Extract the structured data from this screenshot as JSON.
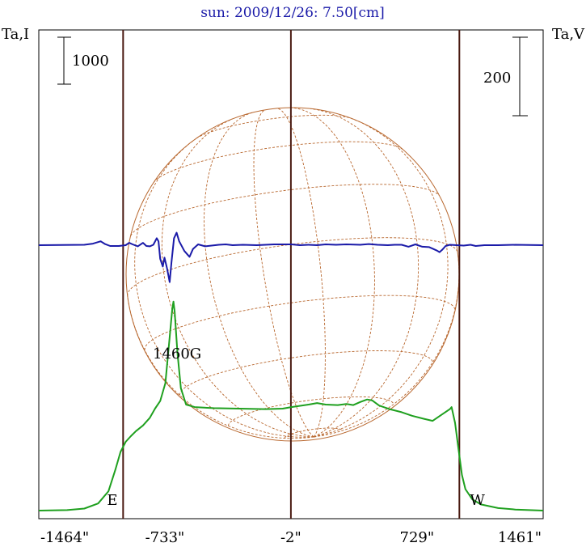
{
  "chart_data": {
    "type": "line",
    "title": "sun: 2009/12/26: 7.50[cm]",
    "left_axis_label": "Ta,I",
    "right_axis_label": "Ta,V",
    "x_tick_labels": [
      "-1464\"",
      "-733\"",
      "-2\"",
      "729\"",
      "1461\""
    ],
    "x_ticks": [
      -1464,
      -733,
      -2,
      729,
      1461
    ],
    "xlim": [
      -1464,
      1461
    ],
    "limb_markers": [
      {
        "label": "E",
        "x": -975
      },
      {
        "label": "W",
        "x": 975
      }
    ],
    "center_line_x": -2,
    "scale_bars": [
      {
        "label": "1000",
        "axis": "left"
      },
      {
        "label": "200",
        "axis": "right"
      }
    ],
    "annotation": {
      "text": "1460G",
      "x": -680
    },
    "series": [
      {
        "color": "#1fa01f",
        "points": [
          [
            -1464,
            0
          ],
          [
            -1300,
            10
          ],
          [
            -1200,
            40
          ],
          [
            -1120,
            140
          ],
          [
            -1060,
            380
          ],
          [
            -1020,
            800
          ],
          [
            -990,
            1150
          ],
          [
            -960,
            1350
          ],
          [
            -930,
            1460
          ],
          [
            -900,
            1560
          ],
          [
            -860,
            1670
          ],
          [
            -820,
            1820
          ],
          [
            -790,
            2000
          ],
          [
            -760,
            2150
          ],
          [
            -730,
            2500
          ],
          [
            -705,
            3400
          ],
          [
            -690,
            3950
          ],
          [
            -683,
            4100
          ],
          [
            -676,
            3900
          ],
          [
            -660,
            3100
          ],
          [
            -640,
            2400
          ],
          [
            -610,
            2080
          ],
          [
            -560,
            2030
          ],
          [
            -450,
            2010
          ],
          [
            -300,
            2000
          ],
          [
            -150,
            1990
          ],
          [
            -50,
            2000
          ],
          [
            0,
            2030
          ],
          [
            100,
            2080
          ],
          [
            150,
            2110
          ],
          [
            200,
            2080
          ],
          [
            270,
            2070
          ],
          [
            320,
            2090
          ],
          [
            360,
            2070
          ],
          [
            400,
            2130
          ],
          [
            440,
            2180
          ],
          [
            470,
            2160
          ],
          [
            510,
            2060
          ],
          [
            570,
            1990
          ],
          [
            640,
            1930
          ],
          [
            700,
            1860
          ],
          [
            770,
            1800
          ],
          [
            820,
            1760
          ],
          [
            850,
            1830
          ],
          [
            880,
            1900
          ],
          [
            920,
            1990
          ],
          [
            930,
            2030
          ],
          [
            950,
            1720
          ],
          [
            970,
            1200
          ],
          [
            990,
            700
          ],
          [
            1010,
            420
          ],
          [
            1050,
            220
          ],
          [
            1100,
            120
          ],
          [
            1200,
            50
          ],
          [
            1300,
            20
          ],
          [
            1461,
            0
          ]
        ]
      },
      {
        "color": "#1a1aa8",
        "points": [
          [
            -1464,
            0
          ],
          [
            -1200,
            1
          ],
          [
            -1150,
            4
          ],
          [
            -1105,
            10
          ],
          [
            -1080,
            3
          ],
          [
            -1050,
            -2
          ],
          [
            -1000,
            -2
          ],
          [
            -960,
            0
          ],
          [
            -940,
            6
          ],
          [
            -920,
            2
          ],
          [
            -890,
            -3
          ],
          [
            -860,
            6
          ],
          [
            -840,
            -2
          ],
          [
            -820,
            -3
          ],
          [
            -800,
            1
          ],
          [
            -780,
            18
          ],
          [
            -770,
            10
          ],
          [
            -760,
            -35
          ],
          [
            -745,
            -55
          ],
          [
            -735,
            -32
          ],
          [
            -720,
            -60
          ],
          [
            -705,
            -95
          ],
          [
            -695,
            -45
          ],
          [
            -680,
            18
          ],
          [
            -665,
            32
          ],
          [
            -650,
            10
          ],
          [
            -620,
            -15
          ],
          [
            -590,
            -30
          ],
          [
            -570,
            -10
          ],
          [
            -540,
            2
          ],
          [
            -500,
            -3
          ],
          [
            -420,
            1
          ],
          [
            -380,
            2
          ],
          [
            -340,
            0
          ],
          [
            -280,
            1
          ],
          [
            -200,
            0
          ],
          [
            -100,
            2
          ],
          [
            0,
            2
          ],
          [
            50,
            0
          ],
          [
            100,
            1
          ],
          [
            150,
            0
          ],
          [
            200,
            2
          ],
          [
            260,
            1
          ],
          [
            320,
            2
          ],
          [
            400,
            1
          ],
          [
            450,
            3
          ],
          [
            500,
            1
          ],
          [
            560,
            0
          ],
          [
            600,
            1
          ],
          [
            640,
            1
          ],
          [
            680,
            -4
          ],
          [
            720,
            2
          ],
          [
            760,
            -4
          ],
          [
            800,
            -5
          ],
          [
            820,
            -9
          ],
          [
            845,
            -14
          ],
          [
            860,
            -18
          ],
          [
            875,
            -12
          ],
          [
            895,
            -2
          ],
          [
            920,
            1
          ],
          [
            960,
            0
          ],
          [
            1000,
            -1
          ],
          [
            1040,
            1
          ],
          [
            1070,
            -2
          ],
          [
            1120,
            0
          ],
          [
            1200,
            0
          ],
          [
            1300,
            1
          ],
          [
            1461,
            0
          ]
        ]
      }
    ],
    "grid": false
  }
}
